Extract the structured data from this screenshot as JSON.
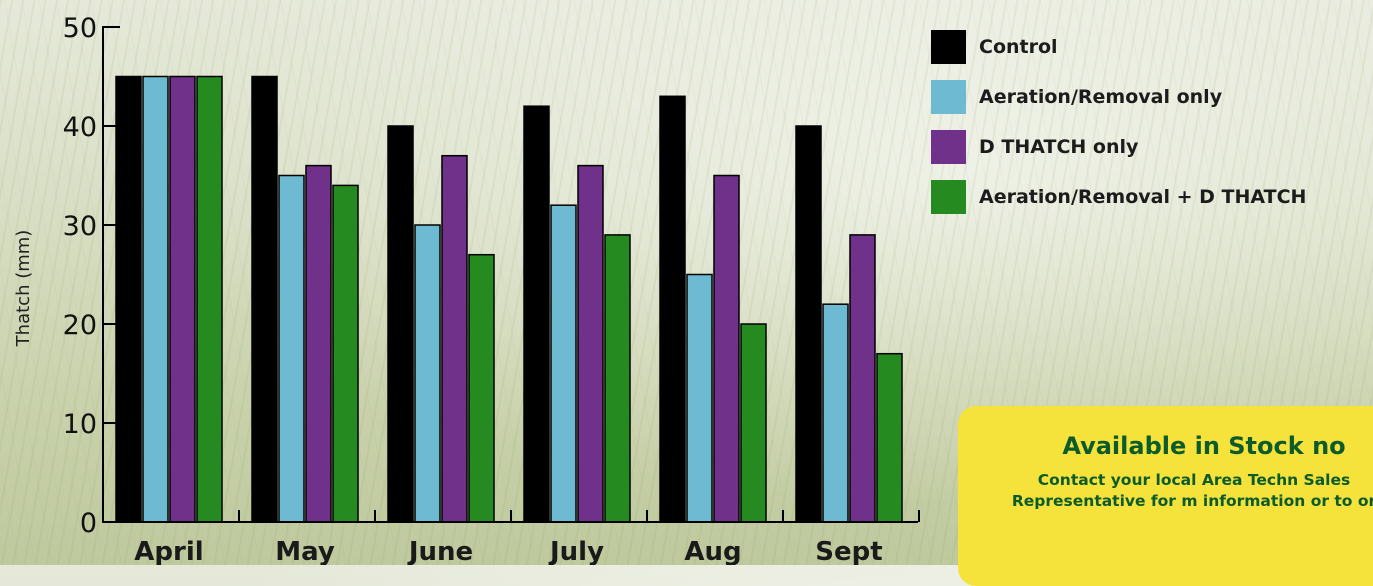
{
  "chart_data": {
    "type": "bar",
    "ylabel": "Thatch (mm)",
    "ylim": [
      0,
      50
    ],
    "yticks": [
      0,
      10,
      20,
      30,
      40,
      50
    ],
    "categories": [
      "April",
      "May",
      "June",
      "July",
      "Aug",
      "Sept"
    ],
    "series": [
      {
        "name": "Control",
        "color": "#000000",
        "values": [
          45,
          45,
          40,
          42,
          43,
          40
        ]
      },
      {
        "name": "Aeration/Removal only",
        "color": "#6dbad2",
        "values": [
          45,
          35,
          30,
          32,
          25,
          22
        ]
      },
      {
        "name": "D THATCH only",
        "color": "#70318a",
        "values": [
          45,
          36,
          37,
          36,
          35,
          29
        ]
      },
      {
        "name": "Aeration/Removal + D THATCH",
        "color": "#258a1f",
        "values": [
          45,
          34,
          27,
          29,
          20,
          17
        ]
      }
    ],
    "legend_position": "top-right"
  },
  "promo": {
    "title": "Available in Stock no",
    "text": "Contact your local Area Techn Sales Representative for m information or to or"
  }
}
